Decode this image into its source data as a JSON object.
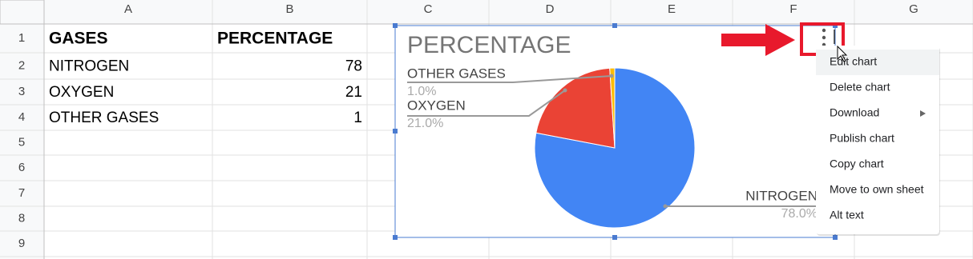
{
  "sheet": {
    "columns": [
      "A",
      "B",
      "C",
      "D",
      "E",
      "F",
      "G"
    ],
    "rows": [
      "1",
      "2",
      "3",
      "4",
      "5",
      "6",
      "7",
      "8",
      "9"
    ],
    "cells": [
      [
        "GASES",
        "PERCENTAGE"
      ],
      [
        "NITROGEN",
        78
      ],
      [
        "OXYGEN",
        21
      ],
      [
        "OTHER GASES",
        1
      ]
    ]
  },
  "chart_data": {
    "type": "pie",
    "title": "PERCENTAGE",
    "categories": [
      "NITROGEN",
      "OXYGEN",
      "OTHER GASES"
    ],
    "values": [
      78,
      21,
      1
    ],
    "value_labels": [
      "78.0%",
      "21.0%",
      "1.0%"
    ],
    "colors": [
      "#4285f4",
      "#ea4335",
      "#fbbc04"
    ]
  },
  "menu": {
    "items": [
      "Edit chart",
      "Delete chart",
      "Download",
      "Publish chart",
      "Copy chart",
      "Move to own sheet",
      "Alt text"
    ]
  }
}
